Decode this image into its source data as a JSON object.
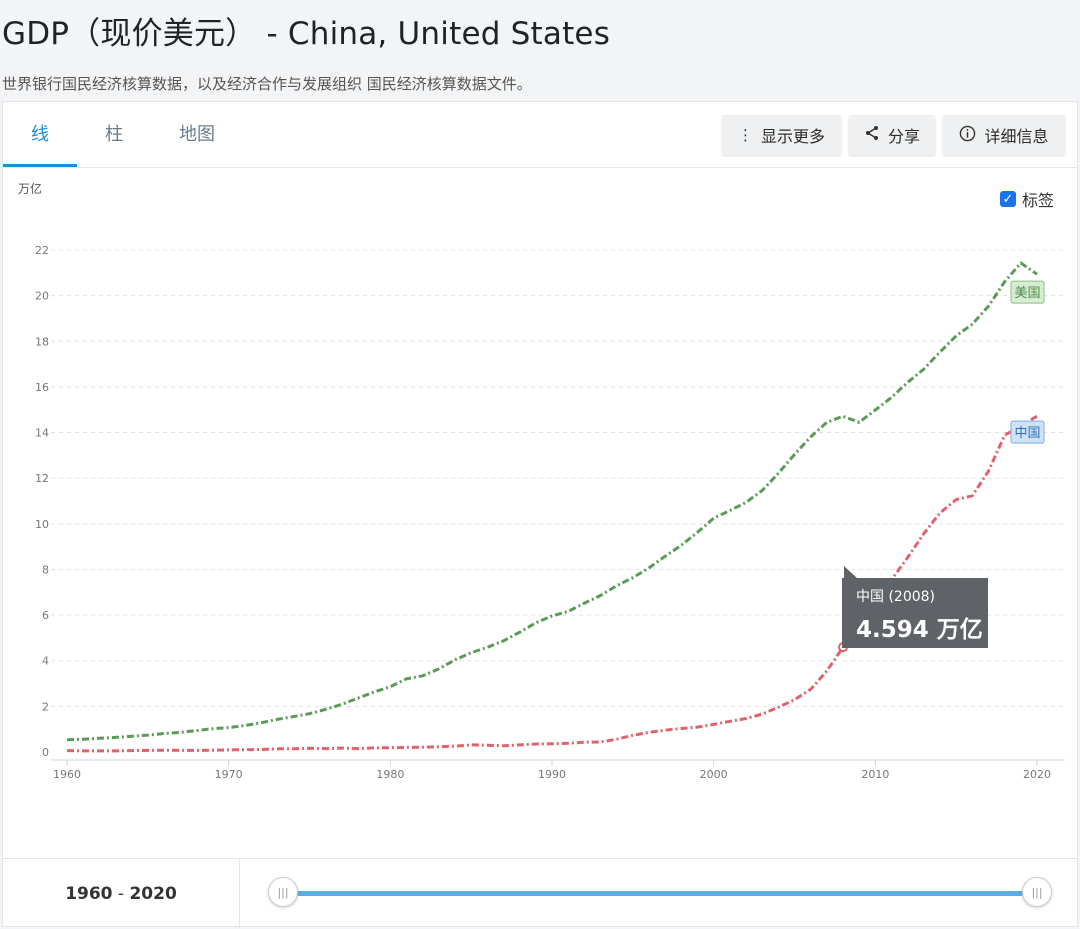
{
  "page": {
    "title": "GDP（现价美元） - China, United States",
    "subtitle": "世界银行国民经济核算数据，以及经济合作与发展组织 国民经济核算数据文件。"
  },
  "tabs": [
    {
      "label": "线",
      "active": true
    },
    {
      "label": "柱",
      "active": false
    },
    {
      "label": "地图",
      "active": false
    }
  ],
  "toolbar": {
    "show_more": "显示更多",
    "share": "分享",
    "details": "详细信息"
  },
  "labels_toggle": {
    "label": "标签",
    "checked": true
  },
  "range": {
    "start": "1960",
    "sep": " - ",
    "end": "2020"
  },
  "tooltip": {
    "series": "中国 (2008)",
    "value": "4.594 万亿"
  },
  "colors": {
    "accent": "#1b8fd8",
    "us": "#5b9a57",
    "cn": "#e0636b"
  },
  "chart_data": {
    "type": "line",
    "ylabel": "万亿",
    "xlim": [
      1960,
      2020
    ],
    "ylim": [
      0,
      22
    ],
    "yticks": [
      0,
      2,
      4,
      6,
      8,
      10,
      12,
      14,
      16,
      18,
      20,
      22
    ],
    "xticks": [
      1960,
      1970,
      1980,
      1990,
      2000,
      2010,
      2020
    ],
    "grid": true,
    "highlight": {
      "series": "中国",
      "x": 2008,
      "y": 4.594
    },
    "series": [
      {
        "name": "美国",
        "color": "#5b9a57",
        "x": [
          1960,
          1961,
          1962,
          1963,
          1964,
          1965,
          1966,
          1967,
          1968,
          1969,
          1970,
          1971,
          1972,
          1973,
          1974,
          1975,
          1976,
          1977,
          1978,
          1979,
          1980,
          1981,
          1982,
          1983,
          1984,
          1985,
          1986,
          1987,
          1988,
          1989,
          1990,
          1991,
          1992,
          1993,
          1994,
          1995,
          1996,
          1997,
          1998,
          1999,
          2000,
          2001,
          2002,
          2003,
          2004,
          2005,
          2006,
          2007,
          2008,
          2009,
          2010,
          2011,
          2012,
          2013,
          2014,
          2015,
          2016,
          2017,
          2018,
          2019,
          2020
        ],
        "values": [
          0.54,
          0.56,
          0.6,
          0.64,
          0.69,
          0.74,
          0.81,
          0.86,
          0.94,
          1.02,
          1.07,
          1.16,
          1.28,
          1.43,
          1.55,
          1.68,
          1.87,
          2.09,
          2.36,
          2.63,
          2.86,
          3.21,
          3.34,
          3.64,
          4.04,
          4.35,
          4.59,
          4.87,
          5.25,
          5.66,
          5.96,
          6.16,
          6.52,
          6.86,
          7.29,
          7.64,
          8.07,
          8.58,
          9.06,
          9.63,
          10.25,
          10.58,
          10.94,
          11.46,
          12.21,
          13.04,
          13.81,
          14.45,
          14.71,
          14.45,
          14.99,
          15.54,
          16.2,
          16.78,
          17.53,
          18.24,
          18.75,
          19.54,
          20.61,
          21.43,
          20.94
        ]
      },
      {
        "name": "中国",
        "color": "#e0636b",
        "x": [
          1960,
          1961,
          1962,
          1963,
          1964,
          1965,
          1966,
          1967,
          1968,
          1969,
          1970,
          1971,
          1972,
          1973,
          1974,
          1975,
          1976,
          1977,
          1978,
          1979,
          1980,
          1981,
          1982,
          1983,
          1984,
          1985,
          1986,
          1987,
          1988,
          1989,
          1990,
          1991,
          1992,
          1993,
          1994,
          1995,
          1996,
          1997,
          1998,
          1999,
          2000,
          2001,
          2002,
          2003,
          2004,
          2005,
          2006,
          2007,
          2008,
          2009,
          2010,
          2011,
          2012,
          2013,
          2014,
          2015,
          2016,
          2017,
          2018,
          2019,
          2020
        ],
        "values": [
          0.06,
          0.05,
          0.05,
          0.05,
          0.06,
          0.07,
          0.08,
          0.07,
          0.07,
          0.08,
          0.09,
          0.1,
          0.11,
          0.14,
          0.14,
          0.16,
          0.15,
          0.17,
          0.15,
          0.18,
          0.19,
          0.2,
          0.21,
          0.23,
          0.26,
          0.31,
          0.3,
          0.27,
          0.31,
          0.35,
          0.36,
          0.38,
          0.43,
          0.44,
          0.56,
          0.73,
          0.86,
          0.96,
          1.03,
          1.09,
          1.21,
          1.34,
          1.47,
          1.66,
          1.96,
          2.29,
          2.75,
          3.55,
          4.594,
          5.1,
          6.09,
          7.55,
          8.53,
          9.57,
          10.48,
          11.06,
          11.23,
          12.31,
          13.89,
          14.28,
          14.72
        ]
      }
    ]
  }
}
